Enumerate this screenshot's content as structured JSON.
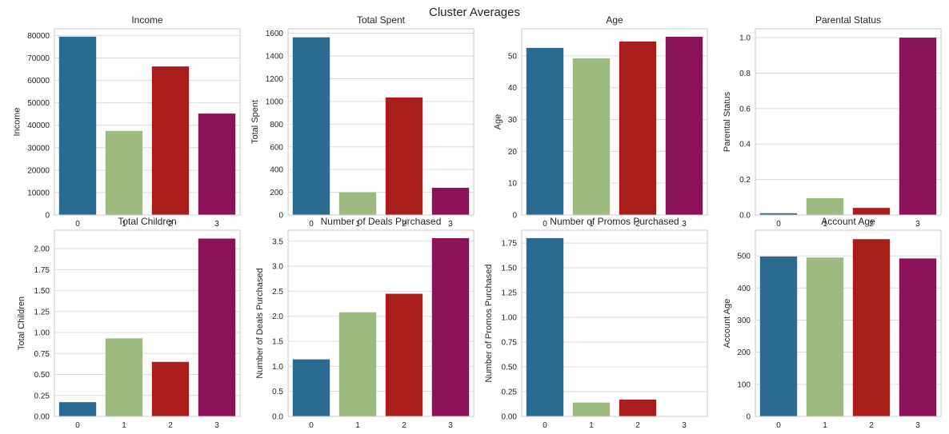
{
  "suptitle": "Cluster Averages",
  "colors": [
    "#2a6b8f",
    "#9eba81",
    "#a91e1b",
    "#8b1256"
  ],
  "chart_data": [
    {
      "type": "bar",
      "title": "Income",
      "ylabel": "Income",
      "categories": [
        "0",
        "1",
        "2",
        "3"
      ],
      "values": [
        79500,
        37500,
        66200,
        45200
      ],
      "ylim": [
        0,
        83000
      ],
      "yticks": [
        0,
        10000,
        20000,
        30000,
        40000,
        50000,
        60000,
        70000,
        80000
      ],
      "ytick_labels": [
        "0",
        "10000",
        "20000",
        "30000",
        "40000",
        "50000",
        "60000",
        "70000",
        "80000"
      ]
    },
    {
      "type": "bar",
      "title": "Total Spent",
      "ylabel": "Total Spent",
      "categories": [
        "0",
        "1",
        "2",
        "3"
      ],
      "values": [
        1565,
        200,
        1035,
        240
      ],
      "ylim": [
        0,
        1640
      ],
      "yticks": [
        0,
        200,
        400,
        600,
        800,
        1000,
        1200,
        1400,
        1600
      ],
      "ytick_labels": [
        "0",
        "200",
        "400",
        "600",
        "800",
        "1000",
        "1200",
        "1400",
        "1600"
      ]
    },
    {
      "type": "bar",
      "title": "Age",
      "ylabel": "Age",
      "categories": [
        "0",
        "1",
        "2",
        "3"
      ],
      "values": [
        52.5,
        49.2,
        54.5,
        56.0
      ],
      "ylim": [
        0,
        58.5
      ],
      "yticks": [
        0,
        10,
        20,
        30,
        40,
        50
      ],
      "ytick_labels": [
        "0",
        "10",
        "20",
        "30",
        "40",
        "50"
      ]
    },
    {
      "type": "bar",
      "title": "Parental Status",
      "ylabel": "Parental Status",
      "categories": [
        "0",
        "1",
        "2",
        "3"
      ],
      "values": [
        0.01,
        0.095,
        0.04,
        1.0
      ],
      "ylim": [
        0,
        1.05
      ],
      "yticks": [
        0,
        0.2,
        0.4,
        0.6,
        0.8,
        1.0
      ],
      "ytick_labels": [
        "0.0",
        "0.2",
        "0.4",
        "0.6",
        "0.8",
        "1.0"
      ]
    },
    {
      "type": "bar",
      "title": "Total Children",
      "ylabel": "Total Children",
      "categories": [
        "0",
        "1",
        "2",
        "3"
      ],
      "values": [
        0.17,
        0.93,
        0.65,
        2.12
      ],
      "ylim": [
        0,
        2.22
      ],
      "yticks": [
        0,
        0.25,
        0.5,
        0.75,
        1.0,
        1.25,
        1.5,
        1.75,
        2.0
      ],
      "ytick_labels": [
        "0.00",
        "0.25",
        "0.50",
        "0.75",
        "1.00",
        "1.25",
        "1.50",
        "1.75",
        "2.00"
      ]
    },
    {
      "type": "bar",
      "title": "Number of Deals Purchased",
      "ylabel": "Number of Deals Purchased",
      "categories": [
        "0",
        "1",
        "2",
        "3"
      ],
      "values": [
        1.14,
        2.08,
        2.45,
        3.56
      ],
      "ylim": [
        0,
        3.72
      ],
      "yticks": [
        0,
        0.5,
        1.0,
        1.5,
        2.0,
        2.5,
        3.0,
        3.5
      ],
      "ytick_labels": [
        "0.0",
        "0.5",
        "1.0",
        "1.5",
        "2.0",
        "2.5",
        "3.0",
        "3.5"
      ]
    },
    {
      "type": "bar",
      "title": "Number of Promos Purchased",
      "ylabel": "Number of Promos Purchased",
      "categories": [
        "0",
        "1",
        "2",
        "3"
      ],
      "values": [
        1.8,
        0.14,
        0.17,
        0.0
      ],
      "ylim": [
        0,
        1.88
      ],
      "yticks": [
        0,
        0.25,
        0.5,
        0.75,
        1.0,
        1.25,
        1.5,
        1.75
      ],
      "ytick_labels": [
        "0.00",
        "0.25",
        "0.50",
        "0.75",
        "1.00",
        "1.25",
        "1.50",
        "1.75"
      ]
    },
    {
      "type": "bar",
      "title": "Account Age",
      "ylabel": "Account Age",
      "categories": [
        "0",
        "1",
        "2",
        "3"
      ],
      "values": [
        498,
        495,
        552,
        492
      ],
      "ylim": [
        0,
        580
      ],
      "yticks": [
        0,
        100,
        200,
        300,
        400,
        500
      ],
      "ytick_labels": [
        "0",
        "100",
        "200",
        "300",
        "400",
        "500"
      ]
    }
  ]
}
